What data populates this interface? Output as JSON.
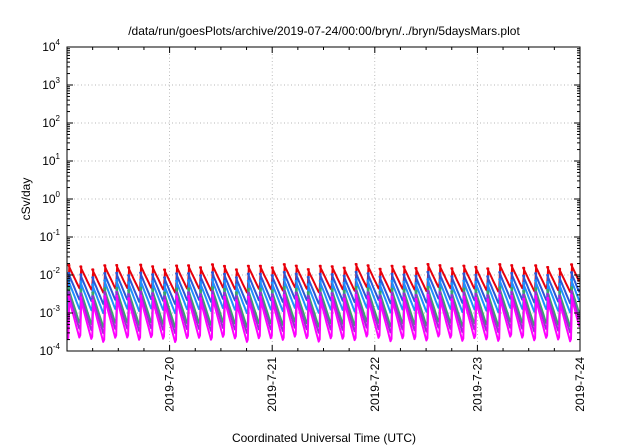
{
  "chart_data": {
    "type": "line",
    "title": "/data/run/goesPlots/archive/2019-07-24/00:00/bryn/../bryn/5daysMars.plot",
    "xlabel": "Coordinated Universal Time (UTC)",
    "ylabel": "cSv/day",
    "yscale": "log",
    "ylim": [
      0.0001,
      10000
    ],
    "yticks": [
      {
        "base": "10",
        "exp": "-4",
        "value": 0.0001
      },
      {
        "base": "10",
        "exp": "-3",
        "value": 0.001
      },
      {
        "base": "10",
        "exp": "-2",
        "value": 0.01
      },
      {
        "base": "10",
        "exp": "-1",
        "value": 0.1
      },
      {
        "base": "10",
        "exp": "0",
        "value": 1
      },
      {
        "base": "10",
        "exp": "1",
        "value": 10
      },
      {
        "base": "10",
        "exp": "2",
        "value": 100
      },
      {
        "base": "10",
        "exp": "3",
        "value": 1000
      },
      {
        "base": "10",
        "exp": "4",
        "value": 10000
      }
    ],
    "xlim": [
      "2019-07-19T00:00",
      "2019-07-24T00:00"
    ],
    "xticks": [
      "2019-7-20",
      "2019-7-21",
      "2019-7-22",
      "2019-7-23",
      "2019-7-24"
    ],
    "grid": true,
    "legend": "none",
    "sawtooth_period_hours": 2.8,
    "series": [
      {
        "color": "#e8000b",
        "peak": 0.017,
        "trough": 0.0042
      },
      {
        "color": "#2b57d6",
        "peak": 0.0105,
        "trough": 0.0021
      },
      {
        "color": "#1e90ff",
        "peak": 0.0068,
        "trough": 0.0012
      },
      {
        "color": "#3aa86b",
        "peak": 0.0042,
        "trough": 0.00052
      },
      {
        "color": "#9a30d0",
        "peak": 0.0033,
        "trough": 0.00036
      },
      {
        "color": "#ff00ff",
        "peak": 0.0026,
        "trough": 0.00021
      }
    ]
  }
}
